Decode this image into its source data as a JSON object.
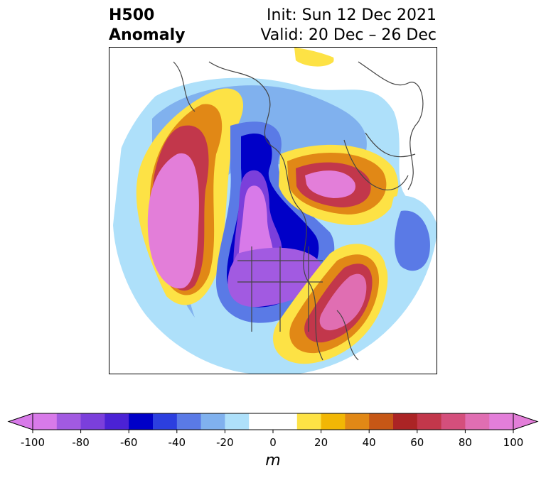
{
  "title": {
    "left_line1": "H500",
    "left_line2": "Anomaly",
    "right_line1": "Init: Sun 12 Dec 2021",
    "right_line2": "Valid: 20 Dec – 26 Dec"
  },
  "colorbar": {
    "unit": "m",
    "min": -100,
    "max": 100,
    "step": 10,
    "extend": "both",
    "tick_labels": [
      "-100",
      "-80",
      "-60",
      "-40",
      "-20",
      "0",
      "20",
      "40",
      "60",
      "80",
      "100"
    ],
    "colors": [
      "#d87ae9",
      "#a25ae1",
      "#7b3fdb",
      "#4b22d5",
      "#0000c8",
      "#2c3fdf",
      "#5a7ae6",
      "#80b1ee",
      "#aee0fa",
      "#ffffff",
      "#ffffff",
      "#fde245",
      "#f2b705",
      "#e18816",
      "#c65716",
      "#ab2425",
      "#c2374b",
      "#d44f7c",
      "#e06eb2",
      "#e37ed9"
    ],
    "extend_min_color": "#d87ae9",
    "extend_max_color": "#e37ed9"
  },
  "map": {
    "projection": "north-polar-stereographic",
    "features": [
      "coastlines",
      "country-borders",
      "state-borders"
    ]
  }
}
